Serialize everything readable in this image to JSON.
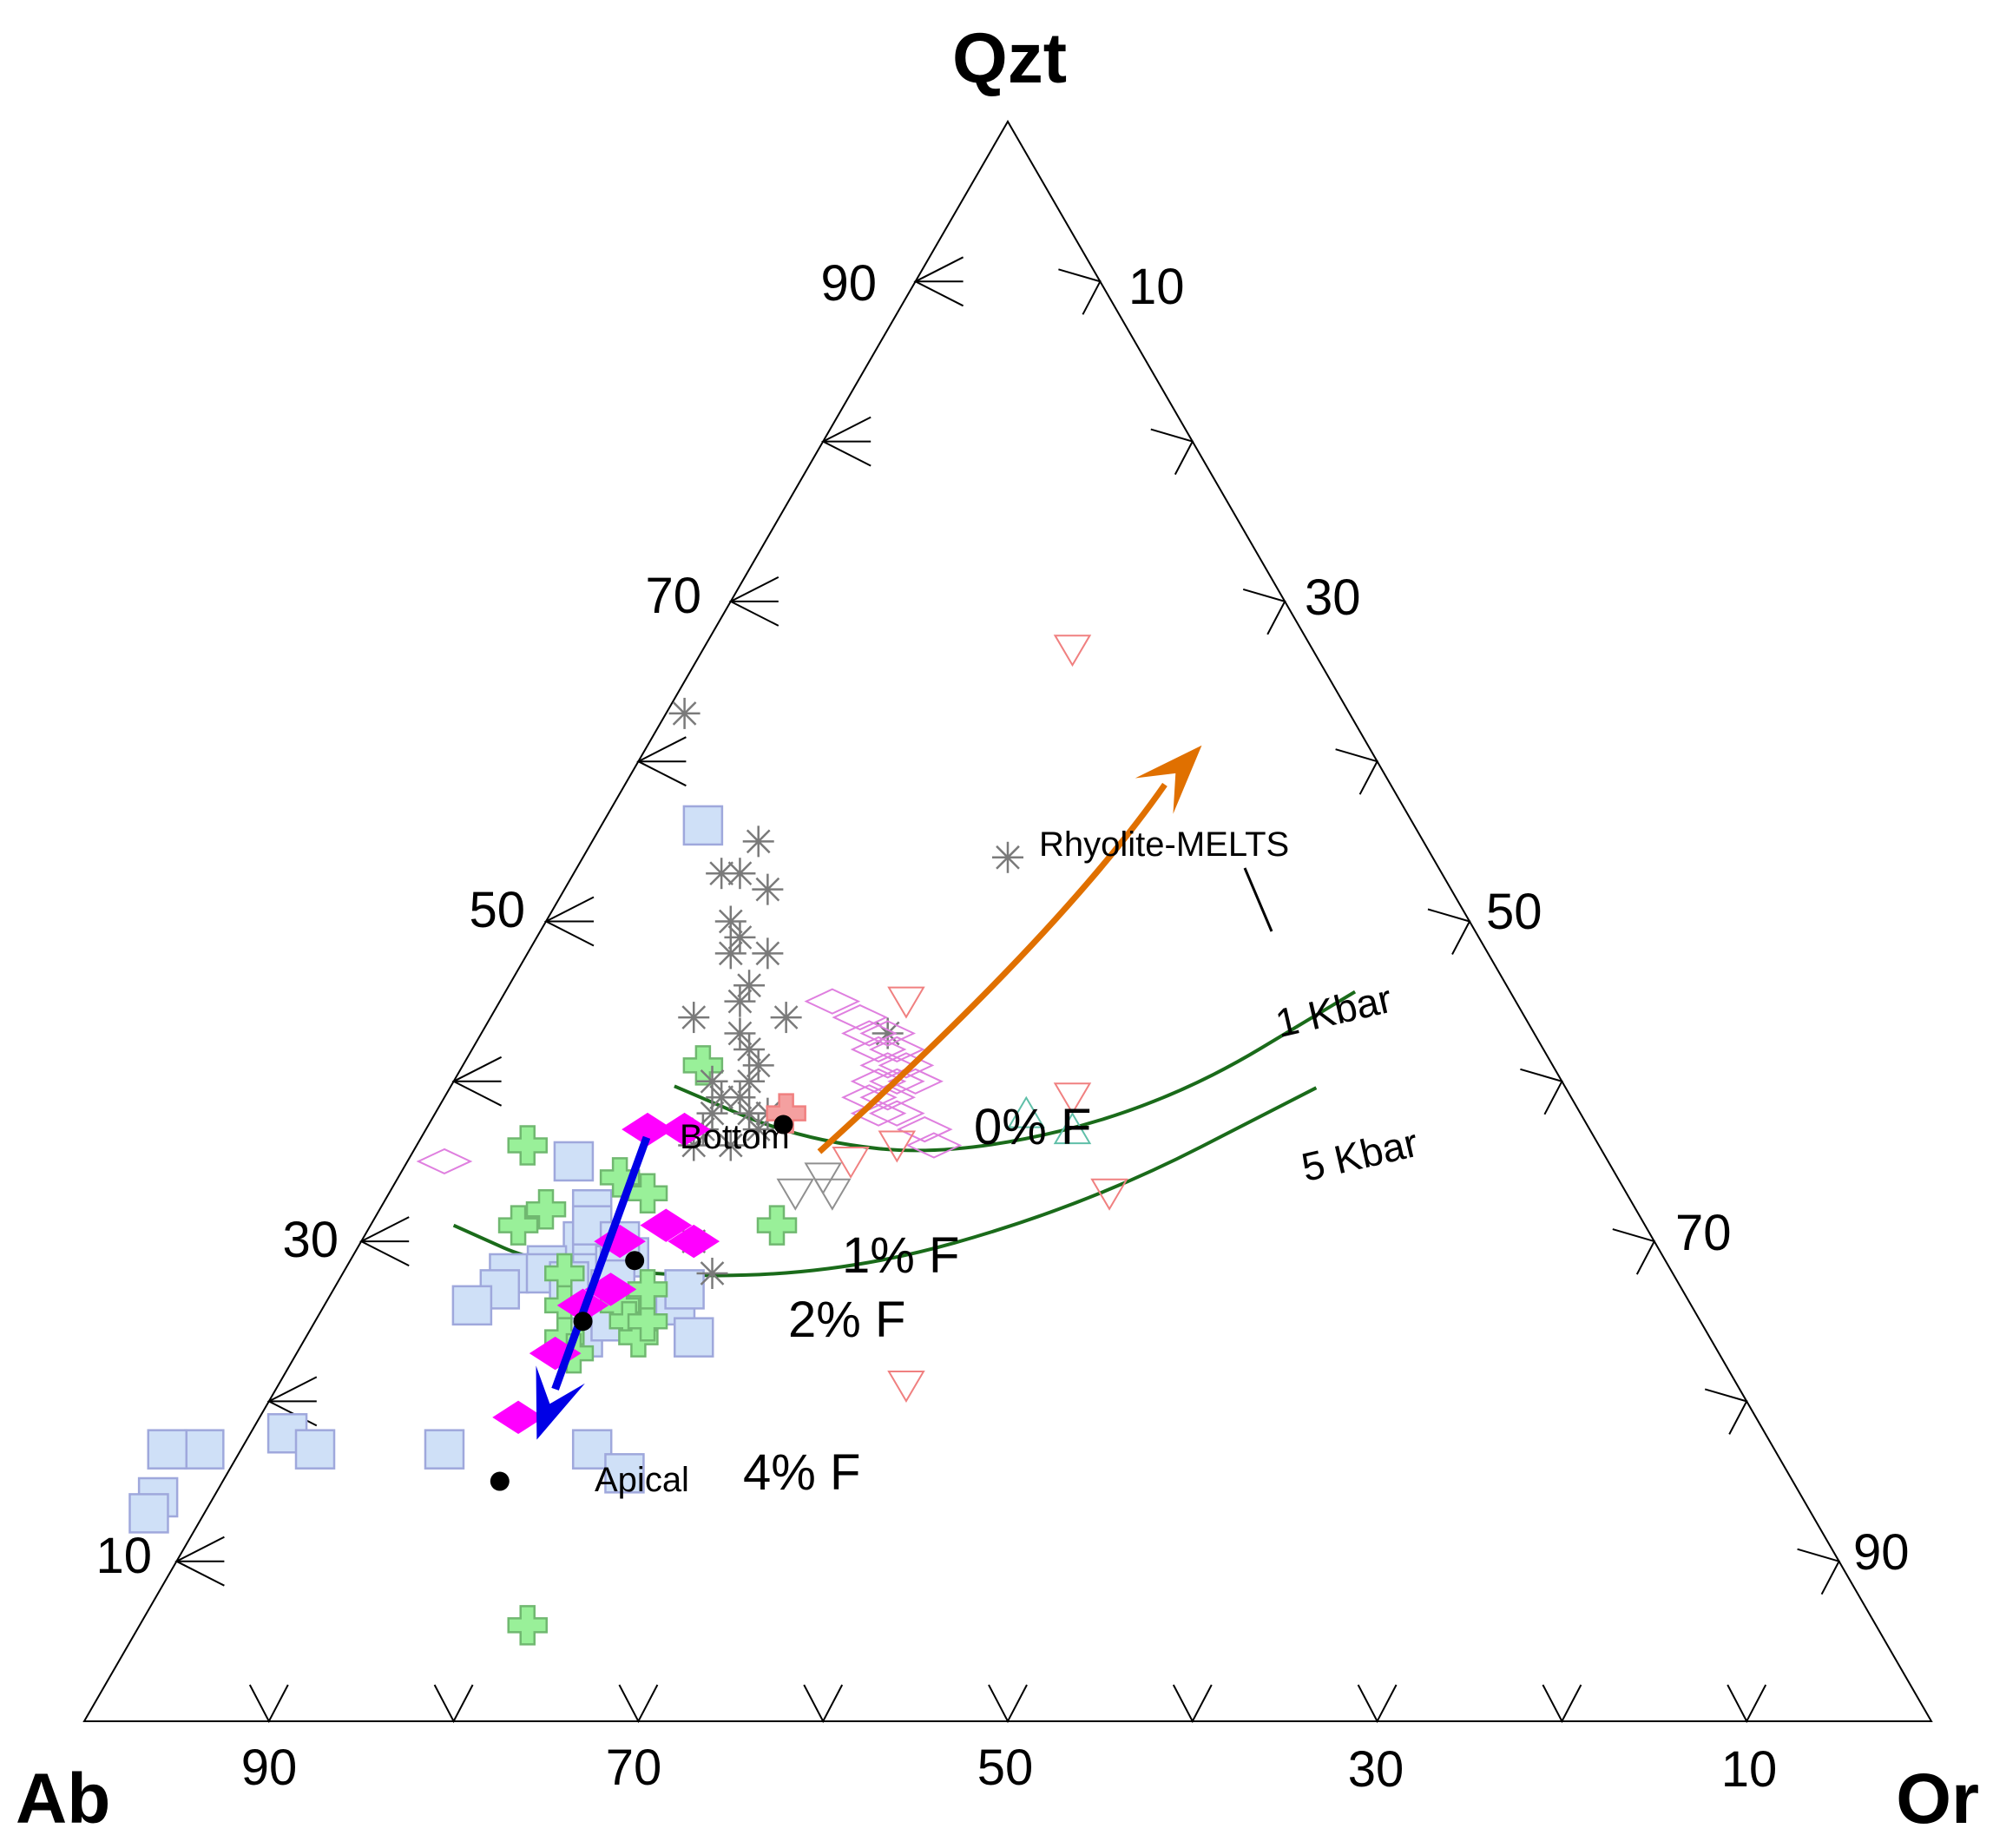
{
  "chart_data": {
    "type": "ternary",
    "apices": {
      "top": "Qzt",
      "left": "Ab",
      "right": "Or"
    },
    "axis_ticks": {
      "qzt_left_side": [
        "90",
        "70",
        "50",
        "30",
        "10"
      ],
      "or_right_side": [
        "10",
        "30",
        "50",
        "70",
        "90"
      ],
      "ab_bottom_side": [
        "90",
        "70",
        "50",
        "30",
        "10"
      ]
    },
    "cotectic_curves": [
      {
        "label": "1 Kbar",
        "color": "#1a6b1a",
        "points": [
          [
            39.7,
            48.2
          ],
          [
            36.3,
            43.0
          ],
          [
            35.3,
            35.2
          ],
          [
            38.5,
            22.2
          ],
          [
            45.6,
            8.4
          ]
        ]
      },
      {
        "label": "5 Kbar",
        "color": "#1a6b1a",
        "points": [
          [
            31.0,
            64.5
          ],
          [
            28.2,
            60.5
          ],
          [
            27.6,
            46.2
          ],
          [
            32.2,
            29.7
          ],
          [
            39.6,
            13.5
          ]
        ]
      }
    ],
    "stages": [
      {
        "label": "0% F",
        "q": 37.3,
        "ab": 43.5
      },
      {
        "label": "1% F",
        "q": 28.8,
        "ab": 55.8
      },
      {
        "label": "2% F",
        "q": 25.0,
        "ab": 60.5
      },
      {
        "label": "4% F",
        "q": 15.0,
        "ab": 70.0
      }
    ],
    "annotations": {
      "bottom": "Bottom",
      "apical": "Apical",
      "model": "Rhyolite-MELTS"
    },
    "trend_arrows": [
      {
        "name": "fractionation-trend",
        "color": "#0000e6",
        "from": [
          36.5,
          51.3
        ],
        "to": [
          17.6,
          66.7
        ]
      },
      {
        "name": "rhyolite-melts-trend",
        "color": "#e07000",
        "from": [
          35.6,
          42.4
        ],
        "to": [
          61.0,
          9.0
        ]
      }
    ],
    "series": [
      {
        "name": "blue-squares",
        "marker": "square",
        "fill": "#cfe0f7",
        "stroke": "#9fa8dc",
        "points": [
          [
            56,
            38.5
          ],
          [
            35,
            56
          ],
          [
            32,
            56.5
          ],
          [
            30,
            58
          ],
          [
            28.5,
            60.7
          ],
          [
            28,
            63
          ],
          [
            27,
            64
          ],
          [
            28,
            61
          ],
          [
            27.5,
            58
          ],
          [
            29,
            58
          ],
          [
            31,
            57
          ],
          [
            29,
            56
          ],
          [
            26,
            55
          ],
          [
            27,
            54
          ],
          [
            24,
            55
          ],
          [
            24,
            61
          ],
          [
            26,
            66
          ],
          [
            25,
            59
          ],
          [
            28,
            58.5
          ],
          [
            27.5,
            60
          ],
          [
            27,
            58
          ],
          [
            28.5,
            57
          ],
          [
            30,
            56
          ],
          [
            18,
            80
          ],
          [
            17,
            79
          ],
          [
            17,
            85
          ],
          [
            17,
            87
          ],
          [
            14,
            89
          ],
          [
            13,
            90
          ],
          [
            17,
            72
          ],
          [
            17,
            64
          ],
          [
            15.5,
            63
          ]
        ]
      },
      {
        "name": "green-crosses",
        "marker": "plus",
        "fill": "#99f099",
        "stroke": "#70b870",
        "points": [
          [
            41,
            46
          ],
          [
            36,
            58
          ],
          [
            32,
            59
          ],
          [
            31,
            61
          ],
          [
            34,
            54
          ],
          [
            33,
            53
          ],
          [
            28,
            60
          ],
          [
            26,
            58
          ],
          [
            25,
            58
          ],
          [
            24,
            58
          ],
          [
            26,
            61
          ],
          [
            25,
            57
          ],
          [
            27,
            56
          ],
          [
            24,
            62
          ],
          [
            23,
            62
          ],
          [
            31,
            47
          ],
          [
            6,
            73
          ]
        ]
      },
      {
        "name": "gray-asterisks",
        "marker": "asterisk",
        "stroke": "#7a7a7a",
        "points": [
          [
            63,
            36
          ],
          [
            55,
            36
          ],
          [
            53,
            39
          ],
          [
            53,
            38
          ],
          [
            52,
            37
          ],
          [
            50,
            40
          ],
          [
            49,
            40
          ],
          [
            48,
            41
          ],
          [
            48,
            39
          ],
          [
            46,
            41
          ],
          [
            45,
            42
          ],
          [
            42,
            43
          ],
          [
            43,
            43
          ],
          [
            41,
            43
          ],
          [
            40,
            44
          ],
          [
            39,
            46
          ],
          [
            39,
            45
          ],
          [
            38,
            47
          ],
          [
            38,
            45
          ],
          [
            38,
            44
          ],
          [
            37,
            45
          ],
          [
            37,
            48
          ],
          [
            36,
            49
          ],
          [
            36,
            47
          ],
          [
            40,
            46
          ],
          [
            44,
            40
          ],
          [
            43,
            35
          ],
          [
            44,
            45
          ],
          [
            30,
            52
          ],
          [
            28,
            52
          ],
          [
            54,
            23
          ]
        ]
      },
      {
        "name": "pink-diamonds",
        "marker": "diamond-open",
        "stroke": "#df7fdf",
        "points": [
          [
            45,
            37
          ],
          [
            44,
            36
          ],
          [
            43,
            36
          ],
          [
            43,
            35
          ],
          [
            42,
            35
          ],
          [
            42,
            36
          ],
          [
            41,
            36
          ],
          [
            41,
            35
          ],
          [
            40,
            37
          ],
          [
            40,
            36
          ],
          [
            40,
            35
          ],
          [
            39,
            37
          ],
          [
            38,
            37
          ],
          [
            38,
            38
          ],
          [
            39,
            38
          ],
          [
            37,
            36
          ],
          [
            36,
            36
          ],
          [
            35,
            63
          ]
        ]
      },
      {
        "name": "salmon-triangles-down",
        "marker": "triangle-down-open",
        "stroke": "#f08080",
        "points": [
          [
            67,
            13
          ],
          [
            45,
            33
          ],
          [
            39,
            27
          ],
          [
            33,
            28
          ],
          [
            21,
            45
          ],
          [
            36,
            38
          ],
          [
            35,
            41
          ]
        ]
      },
      {
        "name": "gray-triangles",
        "marker": "triangle-down-open",
        "stroke": "#909090",
        "points": [
          [
            33,
            45
          ],
          [
            34,
            43
          ],
          [
            33,
            43
          ]
        ]
      },
      {
        "name": "teal-triangles",
        "marker": "triangle-up-open",
        "stroke": "#5fbfa8",
        "points": [
          [
            38,
            30
          ],
          [
            37,
            28
          ]
        ]
      },
      {
        "name": "red-cross",
        "marker": "plus",
        "fill": "#f4a0a0",
        "stroke": "#f08080",
        "points": [
          [
            38,
            43
          ]
        ]
      },
      {
        "name": "magenta-diamonds",
        "marker": "diamond-filled",
        "fill": "#ff00ff",
        "stroke": "#ff00ff",
        "points": [
          [
            37,
            51
          ],
          [
            37,
            49
          ],
          [
            30,
            56
          ],
          [
            31,
            53
          ],
          [
            30,
            52
          ],
          [
            26,
            60
          ],
          [
            27,
            58
          ],
          [
            23,
            63
          ],
          [
            19,
            67
          ]
        ]
      }
    ]
  }
}
